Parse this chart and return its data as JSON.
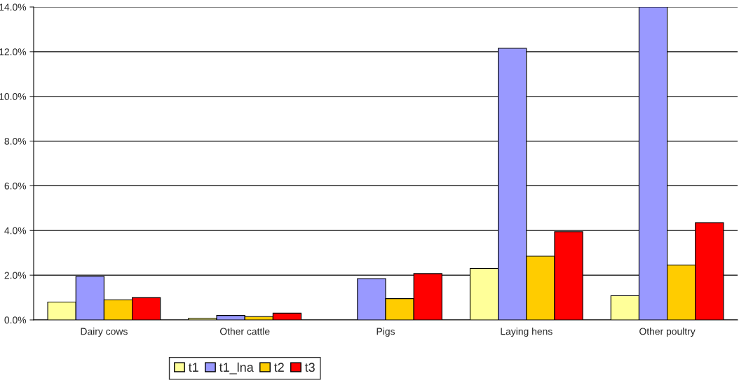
{
  "chart_data": {
    "type": "bar",
    "categories": [
      "Dairy cows",
      "Other cattle",
      "Pigs",
      "Laying hens",
      "Other poultry"
    ],
    "series": [
      {
        "name": "t1",
        "color": "#ffff99",
        "values": [
          0.8,
          0.08,
          null,
          2.3,
          1.08
        ]
      },
      {
        "name": "t1_lna",
        "color": "#9999ff",
        "values": [
          1.95,
          0.2,
          1.85,
          12.15,
          14.0
        ]
      },
      {
        "name": "t2",
        "color": "#ffcc00",
        "values": [
          0.9,
          0.15,
          0.95,
          2.85,
          2.45
        ]
      },
      {
        "name": "t3",
        "color": "#ff0000",
        "values": [
          1.0,
          0.3,
          2.07,
          3.95,
          4.35
        ]
      }
    ],
    "ylim": [
      0,
      14
    ],
    "yticks": [
      {
        "value": 0,
        "label": "0.0%"
      },
      {
        "value": 2,
        "label": "2.0%"
      },
      {
        "value": 4,
        "label": "4.0%"
      },
      {
        "value": 6,
        "label": "6.0%"
      },
      {
        "value": 8,
        "label": "8.0%"
      },
      {
        "value": 10,
        "label": "10.0%"
      },
      {
        "value": 12,
        "label": "12.0%"
      },
      {
        "value": 14,
        "label": "14.0%"
      }
    ],
    "grid": "y",
    "legend": "bottom"
  }
}
